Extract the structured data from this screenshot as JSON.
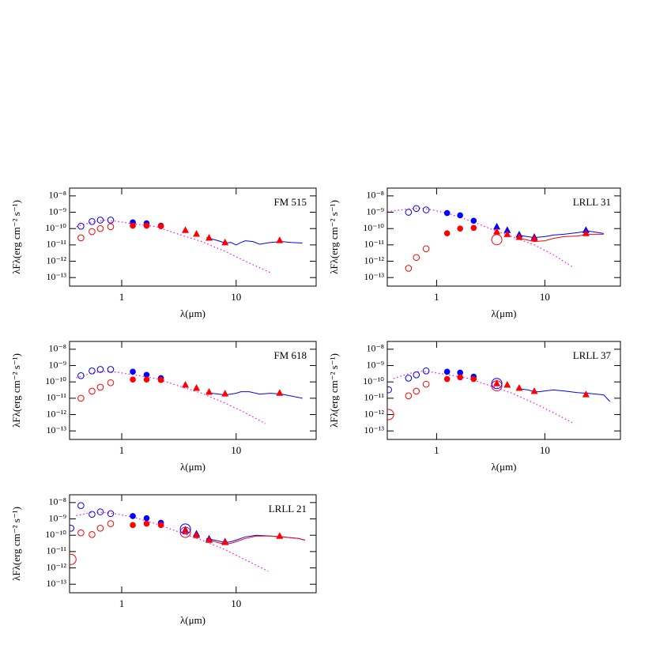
{
  "chart_data": [
    {
      "type": "scatter",
      "title": "FM 515",
      "xlabel": "λ(μm)",
      "ylabel": "λFλ(erg cm⁻² s⁻¹)",
      "xscale": "log",
      "yscale": "log",
      "xlim": [
        0.35,
        50
      ],
      "ylim": [
        3e-14,
        3e-08
      ],
      "xticks": [
        1,
        10
      ],
      "yticks": [
        {
          "value": 1e-08,
          "label": "10⁻⁸"
        },
        {
          "value": 1e-09,
          "label": "10⁻⁹"
        },
        {
          "value": 1e-10,
          "label": "10⁻¹⁰"
        },
        {
          "value": 1e-11,
          "label": "10⁻¹¹"
        },
        {
          "value": 1e-12,
          "label": "10⁻¹²"
        },
        {
          "value": 1e-13,
          "label": "10⁻¹³"
        }
      ],
      "series": [
        {
          "marker": "dotted",
          "color": "#ff00ff",
          "x": [
            0.4,
            0.55,
            0.7,
            0.9,
            1.25,
            2,
            3,
            5,
            8,
            12,
            20
          ],
          "values": [
            1.3e-10,
            2.5e-10,
            3.2e-10,
            2.8e-10,
            2e-10,
            1.3e-10,
            5e-11,
            1.6e-11,
            4e-12,
            1e-12,
            2e-13
          ]
        },
        {
          "marker": "line",
          "color": "#0000ff",
          "x": [
            5.5,
            7,
            8,
            9,
            10,
            11,
            12,
            14,
            16,
            20,
            25,
            30,
            38
          ],
          "values": [
            2.8e-11,
            1.8e-11,
            1.3e-11,
            1.4e-11,
            1e-11,
            1.4e-11,
            1.8e-11,
            1.6e-11,
            1.1e-11,
            1.4e-11,
            1.6e-11,
            1.4e-11,
            1.3e-11
          ]
        },
        {
          "marker": "open-circle",
          "color": "#0000ff",
          "x": [
            0.44,
            0.55,
            0.65,
            0.8
          ],
          "values": [
            1.4e-10,
            2.7e-10,
            3.3e-10,
            3.3e-10
          ]
        },
        {
          "marker": "open-circle",
          "color": "#ff0000",
          "x": [
            0.44,
            0.55,
            0.65,
            0.8
          ],
          "values": [
            2.7e-11,
            6.5e-11,
            1e-10,
            1.3e-10
          ]
        },
        {
          "marker": "filled-circle",
          "color": "#0000ff",
          "x": [
            1.25,
            1.65,
            2.2
          ],
          "values": [
            2.4e-10,
            2.1e-10,
            1.5e-10
          ]
        },
        {
          "marker": "filled-circle",
          "color": "#ff0000",
          "x": [
            1.25,
            1.65,
            2.2
          ],
          "values": [
            1.5e-10,
            1.5e-10,
            1.4e-10
          ]
        },
        {
          "marker": "triangle",
          "color": "#ff0000",
          "x": [
            3.6,
            4.5,
            5.8,
            8,
            24
          ],
          "values": [
            7.9e-11,
            4.7e-11,
            2.7e-11,
            1.4e-11,
            1.9e-11
          ]
        }
      ]
    },
    {
      "type": "scatter",
      "title": "LRLL 31",
      "xlabel": "λ(μm)",
      "ylabel": "λFλ(erg cm⁻² s⁻¹)",
      "xscale": "log",
      "yscale": "log",
      "xlim": [
        0.35,
        50
      ],
      "ylim": [
        3e-14,
        3e-08
      ],
      "xticks": [
        1,
        10
      ],
      "yticks": [
        {
          "value": 1e-08,
          "label": "10⁻⁸"
        },
        {
          "value": 1e-09,
          "label": "10⁻⁹"
        },
        {
          "value": 1e-10,
          "label": "10⁻¹⁰"
        },
        {
          "value": 1e-11,
          "label": "10⁻¹¹"
        },
        {
          "value": 1e-12,
          "label": "10⁻¹²"
        },
        {
          "value": 1e-13,
          "label": "10⁻¹³"
        }
      ],
      "series": [
        {
          "marker": "dotted",
          "color": "#ff00ff",
          "x": [
            0.35,
            0.55,
            0.7,
            0.9,
            1.25,
            2,
            3,
            5,
            8,
            12,
            18
          ],
          "values": [
            1.1e-09,
            1.6e-09,
            1.8e-09,
            1.4e-09,
            8.9e-10,
            3.2e-10,
            1.1e-10,
            3.2e-11,
            1e-11,
            2.5e-12,
            4.5e-13
          ]
        },
        {
          "marker": "line",
          "color": "#0000ff",
          "x": [
            5.5,
            8,
            10,
            12,
            15,
            20,
            25,
            35
          ],
          "values": [
            4e-11,
            2.8e-11,
            3.2e-11,
            4e-11,
            4.5e-11,
            5.6e-11,
            7.1e-11,
            5e-11
          ]
        },
        {
          "marker": "line",
          "color": "#ff0000",
          "x": [
            5.5,
            8,
            10,
            12,
            15,
            20,
            25,
            35
          ],
          "values": [
            2.8e-11,
            1.6e-11,
            1.8e-11,
            2.5e-11,
            3.2e-11,
            3.5e-11,
            4.5e-11,
            4.5e-11
          ]
        },
        {
          "marker": "open-circle",
          "color": "#0000ff",
          "x": [
            0.55,
            0.65,
            0.8
          ],
          "values": [
            1e-09,
            1.7e-09,
            1.4e-09
          ]
        },
        {
          "marker": "open-circle",
          "color": "#ff0000",
          "x": [
            0.55,
            0.65,
            0.8
          ],
          "values": [
            3.7e-13,
            1.7e-12,
            5.8e-12
          ]
        },
        {
          "marker": "filled-circle",
          "color": "#0000ff",
          "x": [
            1.25,
            1.65,
            2.2
          ],
          "values": [
            8.9e-10,
            6.5e-10,
            3e-10
          ]
        },
        {
          "marker": "filled-circle",
          "color": "#ff0000",
          "x": [
            1.25,
            1.65,
            2.2
          ],
          "values": [
            5.1e-11,
            1e-10,
            1.1e-10
          ]
        },
        {
          "marker": "big-circle",
          "color": "#ff0000",
          "x": [
            3.6
          ],
          "values": [
            2.1e-11
          ]
        },
        {
          "marker": "triangle",
          "color": "#0000ff",
          "x": [
            3.6,
            4.5,
            5.8,
            8,
            24
          ],
          "values": [
            1.3e-10,
            7.9e-11,
            4.2e-11,
            3e-11,
            7.9e-11
          ]
        },
        {
          "marker": "triangle",
          "color": "#ff0000",
          "x": [
            3.6,
            4.5,
            5.8,
            8,
            24
          ],
          "values": [
            6.5e-11,
            4.5e-11,
            3e-11,
            2.4e-11,
            5.1e-11
          ]
        }
      ]
    },
    {
      "type": "scatter",
      "title": "FM 618",
      "xlabel": "λ(μm)",
      "ylabel": "λFλ(erg cm⁻² s⁻¹)",
      "xscale": "log",
      "yscale": "log",
      "xlim": [
        0.35,
        50
      ],
      "ylim": [
        3e-14,
        3e-08
      ],
      "xticks": [
        1,
        10
      ],
      "yticks": [
        {
          "value": 1e-08,
          "label": "10⁻⁸"
        },
        {
          "value": 1e-09,
          "label": "10⁻⁹"
        },
        {
          "value": 1e-10,
          "label": "10⁻¹⁰"
        },
        {
          "value": 1e-11,
          "label": "10⁻¹¹"
        },
        {
          "value": 1e-12,
          "label": "10⁻¹²"
        },
        {
          "value": 1e-13,
          "label": "10⁻¹³"
        }
      ],
      "series": [
        {
          "marker": "dotted",
          "color": "#ff00ff",
          "x": [
            0.4,
            0.55,
            0.7,
            0.9,
            1.25,
            2,
            3,
            5,
            8,
            12,
            18
          ],
          "values": [
            1.8e-10,
            3.5e-10,
            4.5e-10,
            4e-10,
            2.8e-10,
            1.6e-10,
            6.3e-11,
            2e-11,
            5e-12,
            1.3e-12,
            2.8e-13
          ]
        },
        {
          "marker": "line",
          "color": "#0000ff",
          "x": [
            5.5,
            7,
            8,
            9,
            10,
            11,
            13,
            16,
            20,
            25,
            38
          ],
          "values": [
            2.2e-11,
            1.8e-11,
            1.6e-11,
            1.8e-11,
            2e-11,
            2.5e-11,
            2.5e-11,
            1.8e-11,
            2e-11,
            1.8e-11,
            1e-11
          ]
        },
        {
          "marker": "open-circle",
          "color": "#0000ff",
          "x": [
            0.44,
            0.55,
            0.65,
            0.8
          ],
          "values": [
            2.4e-10,
            4.7e-10,
            5.8e-10,
            5.8e-10
          ]
        },
        {
          "marker": "open-circle",
          "color": "#ff0000",
          "x": [
            0.44,
            0.55,
            0.65,
            0.8
          ],
          "values": [
            1e-11,
            2.7e-11,
            4.7e-11,
            8.9e-11
          ]
        },
        {
          "marker": "filled-circle",
          "color": "#0000ff",
          "x": [
            1.25,
            1.65,
            2.2
          ],
          "values": [
            4.2e-10,
            2.7e-10,
            1.7e-10
          ]
        },
        {
          "marker": "filled-circle",
          "color": "#ff0000",
          "x": [
            1.25,
            1.65,
            2.2
          ],
          "values": [
            1.4e-10,
            1.4e-10,
            1.3e-10
          ]
        },
        {
          "marker": "triangle",
          "color": "#ff0000",
          "x": [
            3.6,
            4.5,
            5.8,
            8,
            24
          ],
          "values": [
            6.5e-11,
            4.2e-11,
            2.4e-11,
            1.9e-11,
            2.1e-11
          ]
        }
      ]
    },
    {
      "type": "scatter",
      "title": "LRLL 37",
      "xlabel": "λ(μm)",
      "ylabel": "λFλ(erg cm⁻² s⁻¹)",
      "xscale": "log",
      "yscale": "log",
      "xlim": [
        0.35,
        50
      ],
      "ylim": [
        3e-14,
        3e-08
      ],
      "xticks": [
        1,
        10
      ],
      "yticks": [
        {
          "value": 1e-08,
          "label": "10⁻⁸"
        },
        {
          "value": 1e-09,
          "label": "10⁻⁹"
        },
        {
          "value": 1e-10,
          "label": "10⁻¹⁰"
        },
        {
          "value": 1e-11,
          "label": "10⁻¹¹"
        },
        {
          "value": 1e-12,
          "label": "10⁻¹²"
        },
        {
          "value": 1e-13,
          "label": "10⁻¹³"
        }
      ],
      "series": [
        {
          "marker": "dotted",
          "color": "#ff00ff",
          "x": [
            0.4,
            0.55,
            0.7,
            0.9,
            1.25,
            2,
            3,
            5,
            8,
            12,
            18
          ],
          "values": [
            1.6e-10,
            3.2e-10,
            4.5e-10,
            4e-10,
            2.8e-10,
            1.6e-10,
            6.3e-11,
            2e-11,
            5e-12,
            1.3e-12,
            3.2e-13
          ]
        },
        {
          "marker": "line",
          "color": "#0000ff",
          "x": [
            5.5,
            7,
            8,
            9,
            10,
            12,
            15,
            20,
            25,
            35,
            40
          ],
          "values": [
            4e-11,
            3.2e-11,
            2.5e-11,
            2.5e-11,
            2.8e-11,
            3.2e-11,
            2.8e-11,
            2.2e-11,
            2e-11,
            1.6e-11,
            6.3e-12
          ]
        },
        {
          "marker": "open-circle",
          "color": "#0000ff",
          "x": [
            0.36,
            0.55,
            0.65,
            0.8
          ],
          "values": [
            3.3e-11,
            1.7e-10,
            2.7e-10,
            4.7e-10
          ]
        },
        {
          "marker": "open-circle",
          "color": "#ff0000",
          "x": [
            0.55,
            0.65,
            0.8
          ],
          "values": [
            1.4e-11,
            2.7e-11,
            7.2e-11
          ]
        },
        {
          "marker": "big-circle",
          "color": "#ff0000",
          "x": [
            0.36,
            3.6
          ],
          "values": [
            1e-12,
            5.8e-11
          ]
        },
        {
          "marker": "big-circle",
          "color": "#0000ff",
          "x": [
            3.6
          ],
          "values": [
            7.9e-11
          ]
        },
        {
          "marker": "filled-circle",
          "color": "#0000ff",
          "x": [
            1.25,
            1.65,
            2.2
          ],
          "values": [
            4.2e-10,
            3.7e-10,
            2.1e-10
          ]
        },
        {
          "marker": "filled-circle",
          "color": "#ff0000",
          "x": [
            1.25,
            1.65,
            2.2
          ],
          "values": [
            1.5e-10,
            1.9e-10,
            1.5e-10
          ]
        },
        {
          "marker": "triangle",
          "color": "#ff0000",
          "x": [
            3.6,
            4.5,
            5.8,
            8,
            24
          ],
          "values": [
            7.9e-11,
            6.5e-11,
            4.2e-11,
            2.7e-11,
            1.7e-11
          ]
        }
      ]
    },
    {
      "type": "scatter",
      "title": "LRLL 21",
      "xlabel": "λ(μm)",
      "ylabel": "λFλ(erg cm⁻² s⁻¹)",
      "xscale": "log",
      "yscale": "log",
      "xlim": [
        0.35,
        50
      ],
      "ylim": [
        3e-14,
        3e-08
      ],
      "xticks": [
        1,
        10
      ],
      "yticks": [
        {
          "value": 1e-08,
          "label": "10⁻⁸"
        },
        {
          "value": 1e-09,
          "label": "10⁻⁹"
        },
        {
          "value": 1e-10,
          "label": "10⁻¹⁰"
        },
        {
          "value": 1e-11,
          "label": "10⁻¹¹"
        },
        {
          "value": 1e-12,
          "label": "10⁻¹²"
        },
        {
          "value": 1e-13,
          "label": "10⁻¹³"
        }
      ],
      "series": [
        {
          "marker": "dotted",
          "color": "#ff00ff",
          "x": [
            0.4,
            0.55,
            0.7,
            0.9,
            1.25,
            2,
            3,
            5,
            8,
            12,
            19
          ],
          "values": [
            1.6e-09,
            2.5e-09,
            2.5e-09,
            2e-09,
            1.3e-09,
            5e-10,
            1.8e-10,
            5e-11,
            1.3e-11,
            3.2e-12,
            6.3e-13
          ]
        },
        {
          "marker": "line",
          "color": "#0000ff",
          "x": [
            5.5,
            7,
            8,
            9,
            10,
            12,
            15,
            20,
            25,
            35,
            40
          ],
          "values": [
            6.3e-11,
            4.5e-11,
            3.5e-11,
            4e-11,
            5e-11,
            7.9e-11,
            1e-10,
            8.9e-11,
            7.9e-11,
            6.3e-11,
            5e-11
          ]
        },
        {
          "marker": "line",
          "color": "#ff0000",
          "x": [
            5.5,
            7,
            8,
            9,
            10,
            12,
            15,
            20,
            25,
            35,
            40
          ],
          "values": [
            5.6e-11,
            3.5e-11,
            2.8e-11,
            3.2e-11,
            4e-11,
            6.3e-11,
            8.9e-11,
            8.9e-11,
            7.9e-11,
            6.3e-11,
            5e-11
          ]
        },
        {
          "marker": "open-circle",
          "color": "#0000ff",
          "x": [
            0.36,
            0.44,
            0.55,
            0.65,
            0.8
          ],
          "values": [
            2.7e-10,
            6.5e-09,
            1.9e-09,
            2.7e-09,
            2.1e-09
          ]
        },
        {
          "marker": "open-circle",
          "color": "#ff0000",
          "x": [
            0.44,
            0.55,
            0.65,
            0.8
          ],
          "values": [
            1.4e-10,
            1.1e-10,
            2.7e-10,
            5.1e-10
          ]
        },
        {
          "marker": "big-circle",
          "color": "#ff0000",
          "x": [
            0.36,
            3.6
          ],
          "values": [
            3.3e-12,
            1.5e-10
          ]
        },
        {
          "marker": "big-circle",
          "color": "#0000ff",
          "x": [
            3.6
          ],
          "values": [
            2.4e-10
          ]
        },
        {
          "marker": "filled-circle",
          "color": "#0000ff",
          "x": [
            1.25,
            1.65,
            2.2
          ],
          "values": [
            1.5e-09,
            1.1e-09,
            5.8e-10
          ]
        },
        {
          "marker": "filled-circle",
          "color": "#ff0000",
          "x": [
            1.25,
            1.65,
            2.2
          ],
          "values": [
            4.2e-10,
            5.1e-10,
            4.2e-10
          ]
        },
        {
          "marker": "triangle",
          "color": "#0000ff",
          "x": [
            3.6,
            4.5,
            5.8,
            8
          ],
          "values": [
            2.1e-10,
            1.2e-10,
            6e-11,
            4e-11
          ]
        },
        {
          "marker": "triangle",
          "color": "#ff0000",
          "x": [
            3.6,
            4.5,
            5.8,
            8,
            24
          ],
          "values": [
            1.9e-10,
            1e-10,
            5.1e-11,
            3.7e-11,
            8.9e-11
          ]
        }
      ]
    }
  ]
}
